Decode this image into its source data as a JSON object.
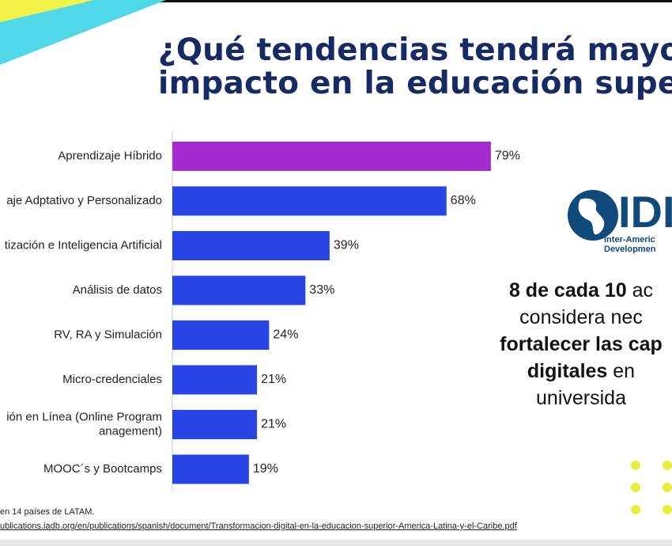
{
  "title": {
    "line1": "¿Qué tendencias tendrá mayor",
    "line2": "impacto en la educación super"
  },
  "chart_data": {
    "type": "bar",
    "orientation": "horizontal",
    "categories": [
      "Aprendizaje Híbrido",
      "aje Adptativo y Personalizado",
      "tización e Inteligencia Artificial",
      "Análisis de datos",
      "RV, RA y Simulación",
      "Micro-credenciales",
      "ión en Línea (Online Program|anagement)",
      "MOOC´s y Bootcamps"
    ],
    "values": [
      79,
      68,
      39,
      33,
      24,
      21,
      21,
      19
    ],
    "value_labels": [
      "79%",
      "68%",
      "39%",
      "33%",
      "24%",
      "21%",
      "21%",
      "19%"
    ],
    "colors": [
      "#a52ad0",
      "#2a45e6",
      "#2a45e6",
      "#2a45e6",
      "#2a45e6",
      "#2a45e6",
      "#2a45e6",
      "#2a45e6"
    ],
    "xlim": [
      0,
      100
    ],
    "grid": false,
    "legend": "none"
  },
  "logo": {
    "name": "IDB",
    "mark_icon": "globe-americas-icon",
    "text": "IDI",
    "sub_line1": "Inter-Americ",
    "sub_line2": "Developmen",
    "color": "#0f4a7a"
  },
  "callout": {
    "line1_bold": "8 de cada 10",
    "line1_rest": " ac",
    "line2": "considera nec",
    "line3_bold": "fortalecer las cap",
    "line4_bold": "digitales",
    "line4_rest": " en",
    "line5": "universida"
  },
  "footnote": {
    "line1": "en 14 países de LATAM.",
    "line2": "ublications.iadb.org/en/publications/spanish/document/Transformacion-digital-en-la-educacion-superior-America-Latina-y-el-Caribe.pdf"
  },
  "colors": {
    "title": "#172a63",
    "bar_highlight": "#a52ad0",
    "bar": "#2a45e6",
    "accent_yellow": "#e7ef3a",
    "accent_cyan": "#4fd8e8"
  }
}
